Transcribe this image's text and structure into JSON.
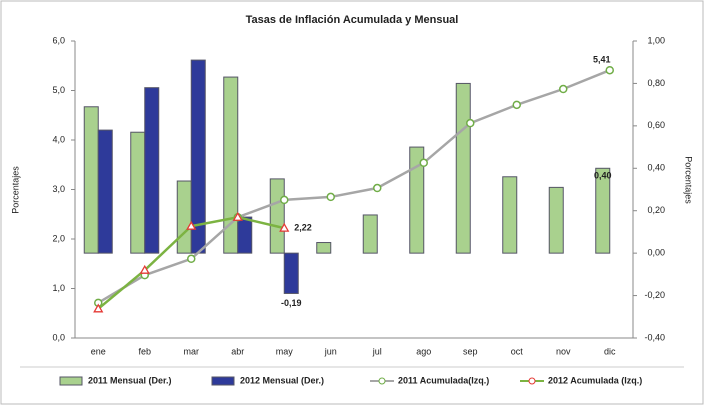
{
  "chart_data": {
    "type": "bar-line",
    "title": "Tasas de Inflación Acumulada y Mensual",
    "y_label": "Porcentajes",
    "y2_label": "Porcentajes",
    "categories": [
      "ene",
      "feb",
      "mar",
      "abr",
      "may",
      "jun",
      "jul",
      "ago",
      "sep",
      "oct",
      "nov",
      "dic"
    ],
    "ylim": [
      0,
      6
    ],
    "yticks": [
      {
        "value": 0,
        "label": "0,0"
      },
      {
        "value": 1,
        "label": "1,0"
      },
      {
        "value": 2,
        "label": "2,0"
      },
      {
        "value": 3,
        "label": "3,0"
      },
      {
        "value": 4,
        "label": "4,0"
      },
      {
        "value": 5,
        "label": "5,0"
      },
      {
        "value": 6,
        "label": "6,0"
      }
    ],
    "y2lim": [
      -0.4,
      1
    ],
    "y2ticks": [
      {
        "value": -0.4,
        "label": "-0,40"
      },
      {
        "value": -0.2,
        "label": "-0,20"
      },
      {
        "value": 0,
        "label": "0,00"
      },
      {
        "value": 0.2,
        "label": "0,20"
      },
      {
        "value": 0.4,
        "label": "0,40"
      },
      {
        "value": 0.6,
        "label": "0,60"
      },
      {
        "value": 0.8,
        "label": "0,80"
      },
      {
        "value": 1,
        "label": "1,00"
      }
    ],
    "series": [
      {
        "name": "2011 Mensual (Der.)",
        "kind": "bar",
        "axis": "y2",
        "color": "#a9d18e",
        "label_color": "#000000",
        "values": [
          0.69,
          0.57,
          0.34,
          0.83,
          0.35,
          0.05,
          0.18,
          0.5,
          0.8,
          0.36,
          0.31,
          0.4
        ],
        "value_labels": [
          null,
          null,
          null,
          null,
          null,
          null,
          null,
          null,
          null,
          null,
          null,
          "0,40"
        ]
      },
      {
        "name": "2012 Mensual (Der.)",
        "kind": "bar",
        "axis": "y2",
        "color": "#2e3a9a",
        "label_color": "#3a7cc4",
        "values": [
          0.58,
          0.78,
          0.91,
          0.17,
          -0.19,
          null,
          null,
          null,
          null,
          null,
          null,
          null
        ],
        "value_labels": [
          null,
          null,
          null,
          null,
          "-0,19",
          null,
          null,
          null,
          null,
          null,
          null,
          null
        ]
      },
      {
        "name": "2011 Acumulada(Izq.)",
        "kind": "line",
        "color": "#a6a6a6",
        "marker": "circle",
        "marker_color": "#70ad47",
        "label_color": "#4caf50",
        "values": [
          0.71,
          1.27,
          1.6,
          2.44,
          2.79,
          2.85,
          3.03,
          3.54,
          4.34,
          4.71,
          5.03,
          5.41
        ],
        "value_labels": [
          null,
          null,
          null,
          null,
          null,
          null,
          null,
          null,
          null,
          null,
          null,
          "5,41"
        ]
      },
      {
        "name": "2012 Acumulada (Izq.)",
        "kind": "line",
        "color": "#7cb342",
        "marker": "triangle",
        "marker_color": "#e53935",
        "label_color": "#e53935",
        "values": [
          0.59,
          1.37,
          2.26,
          2.44,
          2.22,
          null,
          null,
          null,
          null,
          null,
          null,
          null
        ],
        "value_labels": [
          null,
          null,
          null,
          null,
          "2,22",
          null,
          null,
          null,
          null,
          null,
          null,
          null
        ]
      }
    ]
  }
}
